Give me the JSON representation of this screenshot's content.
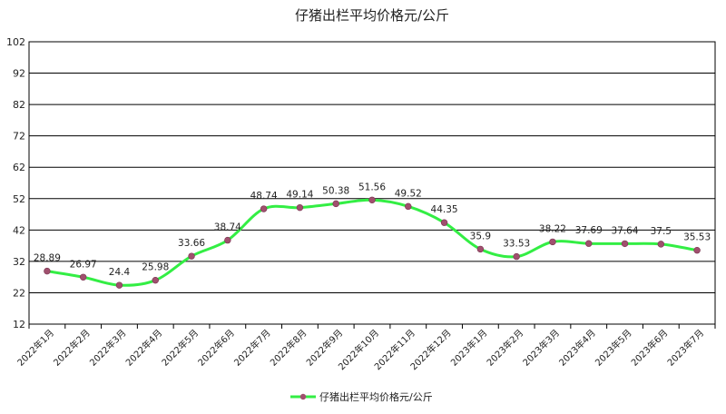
{
  "chart_data": {
    "type": "line",
    "title": "仔猪出栏平均价格元/公斤",
    "xlabel": "",
    "ylabel": "",
    "categories": [
      "2022年1月",
      "2022年2月",
      "2022年3月",
      "2022年4月",
      "2022年5月",
      "2022年6月",
      "2022年7月",
      "2022年8月",
      "2022年9月",
      "2022年10月",
      "2022年11月",
      "2022年12月",
      "2023年1月",
      "2023年2月",
      "2023年3月",
      "2023年4月",
      "2023年5月",
      "2023年6月",
      "2023年7月"
    ],
    "series": [
      {
        "name": "仔猪出栏平均价格元/公斤",
        "values": [
          28.89,
          26.97,
          24.4,
          25.98,
          33.66,
          38.74,
          48.74,
          49.14,
          50.38,
          51.56,
          49.52,
          44.35,
          35.9,
          33.53,
          38.22,
          37.69,
          37.64,
          37.5,
          35.53
        ],
        "labels": [
          "28.89",
          "26.97",
          "24.4",
          "25.98",
          "33.66",
          "38.74",
          "48.74",
          "49.14",
          "50.38",
          "51.56",
          "49.52",
          "44.35",
          "35.9",
          "33.53",
          "38.22",
          "37.69",
          "37.64",
          "37.5",
          "35.53"
        ]
      }
    ],
    "ylim": [
      12,
      102
    ],
    "yticks": [
      "12",
      "22",
      "32",
      "42",
      "52",
      "62",
      "72",
      "82",
      "92",
      "102"
    ],
    "grid": true,
    "legend_position": "bottom",
    "colors": {
      "line": "#33ee44",
      "marker": "#a0506e",
      "grid": "#000000",
      "axis": "#000000"
    }
  }
}
